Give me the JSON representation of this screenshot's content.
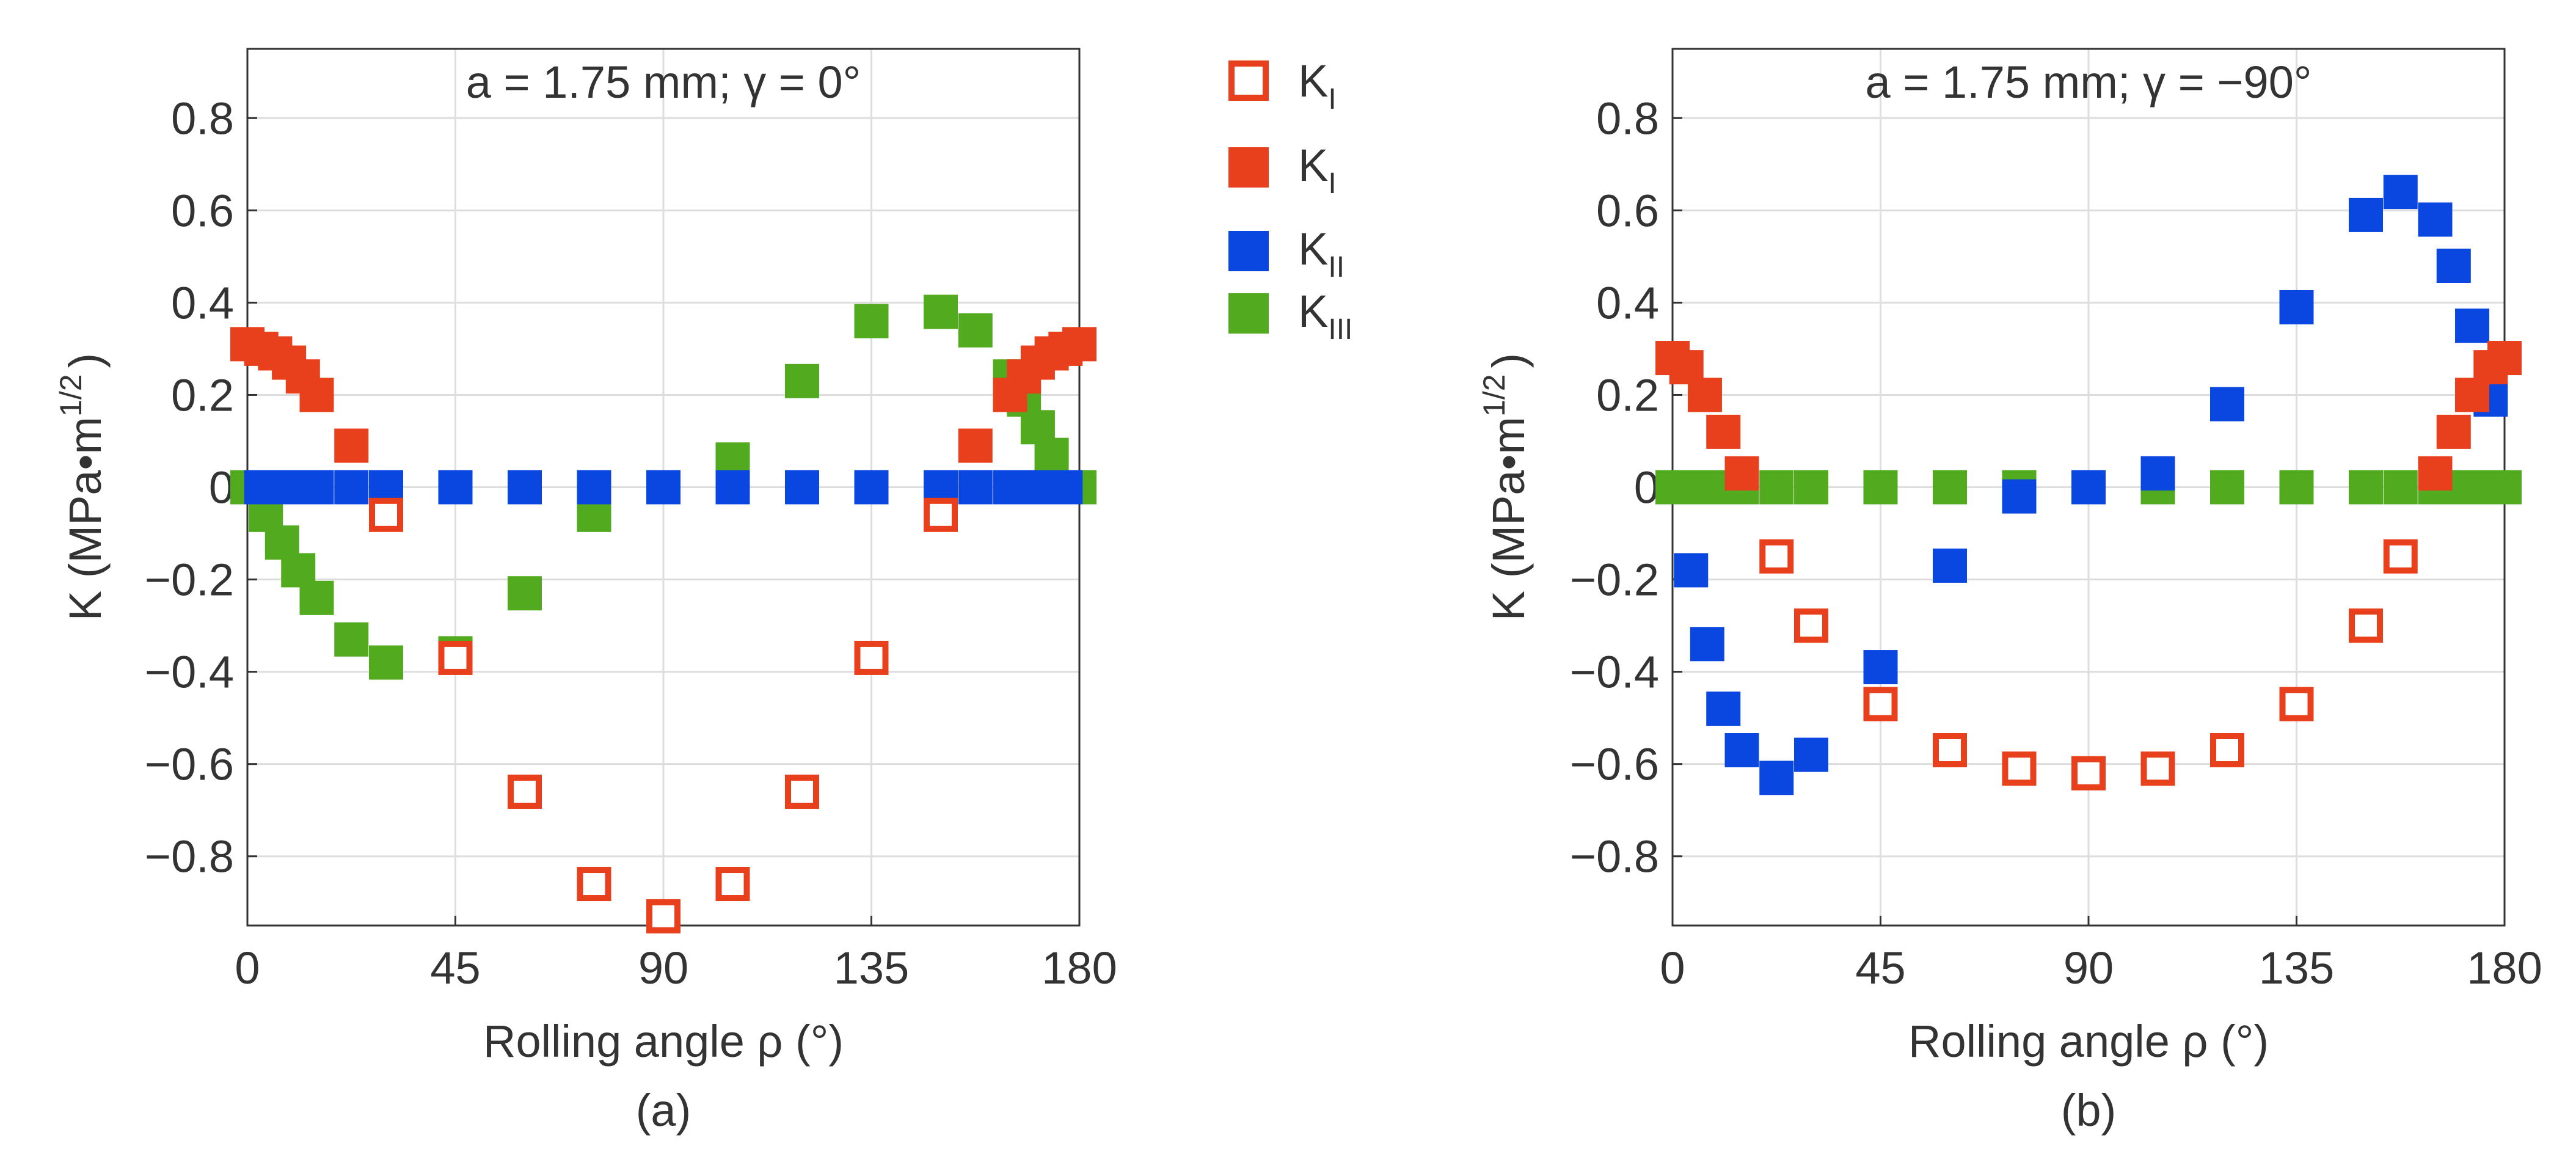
{
  "colors": {
    "k1_negative": "#E8401C",
    "k1_positive": "#E8401C",
    "k2": "#0A46E0",
    "k3": "#52AA1E",
    "grid": "#DDDDDD",
    "axis": "#333333"
  },
  "legend": [
    {
      "key": "k1_negative",
      "label": "K",
      "sub": "I",
      "marker": "open-square",
      "color": "#E8401C"
    },
    {
      "key": "k1_positive",
      "label": "K",
      "sub": "I",
      "marker": "filled-square",
      "color": "#E8401C"
    },
    {
      "key": "k2",
      "label": "K",
      "sub": "II",
      "marker": "filled-square",
      "color": "#0A46E0"
    },
    {
      "key": "k3",
      "label": "K",
      "sub": "III",
      "marker": "filled-square",
      "color": "#52AA1E"
    }
  ],
  "chart_data": [
    {
      "type": "scatter",
      "panel_label": "(a)",
      "title": "a = 1.75 mm; γ  = 0°",
      "xlabel": "Rolling angle ρ  (°)",
      "ylabel": "K (MPa•m",
      "ylabel_sup": "1/2",
      "ylabel_close": ")",
      "xlim": [
        0,
        180
      ],
      "ylim": [
        -0.95,
        0.95
      ],
      "xticks": [
        0,
        45,
        90,
        135,
        180
      ],
      "xtick_labels": [
        "0",
        "45",
        "90",
        "135",
        "180"
      ],
      "yticks": [
        -0.8,
        -0.6,
        -0.4,
        -0.2,
        0,
        0.2,
        0.4,
        0.6,
        0.8
      ],
      "ytick_labels": [
        "−0.8",
        "−0.6",
        "−0.4",
        "−0.2",
        "0",
        "0.2",
        "0.4",
        "0.6",
        "0.8"
      ],
      "grid": true,
      "series": [
        {
          "name": "K_I (negative)",
          "key": "k1_negative",
          "marker": "open-square",
          "x": [
            30,
            45,
            60,
            75,
            90,
            105,
            120,
            135,
            150
          ],
          "y": [
            -0.06,
            -0.37,
            -0.66,
            -0.86,
            -0.93,
            -0.86,
            -0.66,
            -0.37,
            -0.06
          ]
        },
        {
          "name": "K_I (positive)",
          "key": "k1_positive",
          "marker": "filled-square",
          "x": [
            0,
            3,
            6,
            9,
            12,
            15,
            22.5,
            157.5,
            165,
            168,
            171,
            174,
            177,
            180
          ],
          "y": [
            0.31,
            0.3,
            0.29,
            0.27,
            0.24,
            0.2,
            0.09,
            0.09,
            0.2,
            0.24,
            0.27,
            0.29,
            0.3,
            0.31
          ]
        },
        {
          "name": "K_II",
          "key": "k2",
          "marker": "filled-square",
          "x": [
            3,
            6,
            9,
            12,
            15,
            22.5,
            30,
            45,
            60,
            75,
            90,
            105,
            120,
            135,
            150,
            157.5,
            165,
            168,
            171,
            174,
            177
          ],
          "y": [
            0,
            0,
            0,
            0,
            0,
            0,
            0,
            0,
            0,
            0,
            0,
            0,
            0,
            0,
            0,
            0,
            0,
            0,
            0,
            0,
            0
          ]
        },
        {
          "name": "K_III",
          "key": "k3",
          "marker": "filled-square",
          "x": [
            0,
            4,
            7.5,
            11,
            15,
            22.5,
            30,
            45,
            60,
            75,
            90,
            105,
            120,
            135,
            150,
            157.5,
            165,
            168,
            171,
            174,
            180
          ],
          "y": [
            0,
            -0.06,
            -0.12,
            -0.18,
            -0.24,
            -0.33,
            -0.38,
            -0.36,
            -0.23,
            -0.06,
            0,
            0.06,
            0.23,
            0.36,
            0.38,
            0.34,
            0.24,
            0.19,
            0.13,
            0.07,
            0
          ]
        }
      ]
    },
    {
      "type": "scatter",
      "panel_label": "(b)",
      "title": "a = 1.75 mm; γ  = −90°",
      "xlabel": "Rolling angle ρ  (°)",
      "ylabel": "K (MPa•m",
      "ylabel_sup": "1/2",
      "ylabel_close": ")",
      "xlim": [
        0,
        180
      ],
      "ylim": [
        -0.95,
        0.95
      ],
      "xticks": [
        0,
        45,
        90,
        135,
        180
      ],
      "xtick_labels": [
        "0",
        "45",
        "90",
        "135",
        "180"
      ],
      "yticks": [
        -0.8,
        -0.6,
        -0.4,
        -0.2,
        0,
        0.2,
        0.4,
        0.6,
        0.8
      ],
      "ytick_labels": [
        "−0.8",
        "−0.6",
        "−0.4",
        "−0.2",
        "0",
        "0.2",
        "0.4",
        "0.6",
        "0.8"
      ],
      "grid": true,
      "series": [
        {
          "name": "K_I (negative)",
          "key": "k1_negative",
          "marker": "open-square",
          "x": [
            22.5,
            30,
            45,
            60,
            75,
            90,
            105,
            120,
            135,
            150,
            157.5
          ],
          "y": [
            -0.15,
            -0.3,
            -0.47,
            -0.57,
            -0.61,
            -0.62,
            -0.61,
            -0.57,
            -0.47,
            -0.3,
            -0.15
          ]
        },
        {
          "name": "K_I (positive)",
          "key": "k1_positive",
          "marker": "filled-square",
          "x": [
            0,
            3,
            7,
            11,
            15,
            165,
            169,
            173,
            177,
            180
          ],
          "y": [
            0.28,
            0.26,
            0.2,
            0.12,
            0.03,
            0.03,
            0.12,
            0.2,
            0.26,
            0.28
          ]
        },
        {
          "name": "K_II",
          "key": "k2",
          "marker": "filled-square",
          "x": [
            4,
            7.5,
            11,
            15,
            22.5,
            30,
            45,
            60,
            75,
            90,
            105,
            120,
            135,
            150,
            157.5,
            165,
            169,
            173,
            177
          ],
          "y": [
            -0.18,
            -0.34,
            -0.48,
            -0.57,
            -0.63,
            -0.58,
            -0.39,
            -0.17,
            -0.02,
            0,
            0.03,
            0.18,
            0.39,
            0.59,
            0.64,
            0.58,
            0.48,
            0.35,
            0.19
          ]
        },
        {
          "name": "K_III",
          "key": "k3",
          "marker": "filled-square",
          "x": [
            0,
            3,
            6,
            9,
            12,
            15,
            22.5,
            30,
            45,
            60,
            75,
            90,
            105,
            120,
            135,
            150,
            157.5,
            165,
            168,
            171,
            174,
            177,
            180
          ],
          "y": [
            0,
            0,
            0,
            0,
            0,
            0,
            0,
            0,
            0,
            0,
            0,
            0,
            0,
            0,
            0,
            0,
            0,
            0,
            0,
            0,
            0,
            0,
            0
          ]
        }
      ]
    }
  ]
}
